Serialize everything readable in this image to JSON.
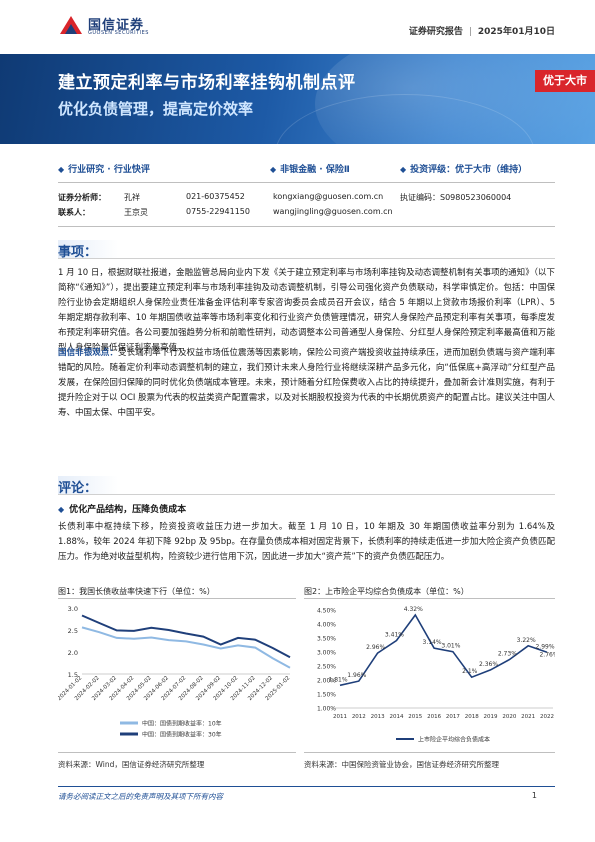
{
  "header": {
    "logo_cn": "国信证券",
    "logo_en": "GUOSEN SECURITIES",
    "report_type": "证券研究报告",
    "date": "2025年01月10日"
  },
  "banner": {
    "title": "建立预定利率与市场利率挂钩机制点评",
    "subtitle": "优化负债管理，提高定价效率",
    "rating_tag": "优于大市"
  },
  "tags": {
    "category": "行业研究 · 行业快评",
    "sector": "非银金融 · 保险Ⅱ",
    "rating": "投资评级：优于大市（维持）"
  },
  "analysts": {
    "row1": {
      "label": "证券分析师：",
      "name": "孔祥",
      "phone": "021-60375452",
      "email": "kongxiang@guosen.com.cn",
      "cert": "执证编码：S0980523060004"
    },
    "row2": {
      "label": "联系人：",
      "name": "王京灵",
      "phone": "0755-22941150",
      "email": "wangjingling@guosen.com.cn"
    }
  },
  "event": {
    "heading": "事项：",
    "para": "1 月 10 日，根据财联社报道，金融监管总局向业内下发《关于建立预定利率与市场利率挂钩及动态调整机制有关事项的通知》（以下简称“《通知》”），提出要建立预定利率与市场利率挂钩及动态调整机制，引导公司强化资产负债联动，科学审慎定价。包括：中国保险行业协会定期组织人身保险业责任准备金评估利率专家咨询委员会成员召开会议，结合 5 年期以上贷款市场报价利率（LPR）、5 年期定期存款利率、10 年期国债收益率等市场利率变化和行业资产负债管理情况，研究人身保险产品预定利率有关事项，每季度发布预定利率研究值。各公司要加强趋势分析和前瞻性研判，动态调整本公司普通型人身保险、分红型人身保险预定利率最高值和万能型人身保险最低保证利率最高值。",
    "view_label": "国信非银观点：",
    "view_text": "受长端利率下行及权益市场低位震荡等因素影响，保险公司资产端投资收益持续承压，进而加剧负债端与资产端利率错配的风险。随着定价利率动态调整机制的建立，我们预计未来人身险行业将继续深耕产品多元化，向“低保底+高浮动”分红型产品发展，在保险回归保障的同时优化负债端成本管理。未来，预计随着分红险保费收入占比的持续提升，叠加新会计准则实施，有利于提升险企对于以 OCI 股票为代表的权益类资产配置需求，以及对长期股权投资为代表的中长期优质资产的配置占比。建议关注中国人寿、中国太保、中国平安。"
  },
  "comment": {
    "heading": "评论：",
    "bullet": "优化产品结构，压降负债成本",
    "para": "长债利率中枢持续下移，险资投资收益压力进一步加大。截至 1 月 10 日，10 年期及 30 年期国债收益率分别为 1.64%及 1.88%，较年 2024 年初下降 92bp 及 95bp。在存量负债成本相对固定背景下，长债利率的持续走低进一步加大险企资产负债匹配压力。作为绝对收益型机构，险资较少进行信用下沉，因此进一步加大“资产荒”下的资产负债匹配压力。"
  },
  "fig1": {
    "title": "图1：我国长债收益率快速下行（单位：%）",
    "source": "资料来源：Wind，国信证券经济研究所整理"
  },
  "fig2": {
    "title": "图2：上市险企平均综合负债成本（单位：%）",
    "source": "资料来源：中国保险资管业协会，国信证券经济研究所整理"
  },
  "chart_data": [
    {
      "type": "line",
      "title": "",
      "x": [
        "2024-01-02",
        "2024-02-02",
        "2024-03-02",
        "2024-04-02",
        "2024-05-02",
        "2024-06-02",
        "2024-07-02",
        "2024-08-02",
        "2024-09-02",
        "2024-10-02",
        "2024-11-02",
        "2024-12-02",
        "2025-01-02"
      ],
      "series": [
        {
          "name": "中国：国债到期收益率：10年",
          "color": "#8fb9e3",
          "values": [
            2.56,
            2.45,
            2.32,
            2.3,
            2.33,
            2.27,
            2.24,
            2.17,
            2.08,
            2.15,
            2.1,
            1.86,
            1.64
          ]
        },
        {
          "name": "中国：国债到期收益率：30年",
          "color": "#1f3f7a",
          "values": [
            2.83,
            2.66,
            2.49,
            2.48,
            2.55,
            2.5,
            2.42,
            2.35,
            2.17,
            2.32,
            2.28,
            2.09,
            1.88
          ]
        }
      ],
      "ylim": [
        1.5,
        3.0
      ],
      "yticks": [
        "3.0",
        "2.5",
        "2.0",
        "1.5"
      ],
      "xticks": [
        "2024-01-02",
        "2024-02-02",
        "2024-03-02",
        "2024-04-02",
        "2024-05-02",
        "2024-06-02",
        "2024-07-02",
        "2024-08-02",
        "2024-09-02",
        "2024-10-02",
        "2024-11-02",
        "2024-12-02",
        "2025-01-02"
      ],
      "legend": "bottom"
    },
    {
      "type": "line",
      "title": "",
      "x": [
        "2011",
        "2012",
        "2013",
        "2014",
        "2015",
        "2016",
        "2017",
        "2018",
        "2019",
        "2020",
        "2021",
        "2022"
      ],
      "series": [
        {
          "name": "上市险企平均综合负债成本",
          "color": "#1f3f7a",
          "values": [
            1.81,
            1.96,
            2.96,
            3.41,
            4.32,
            3.14,
            3.01,
            2.1,
            2.36,
            2.73,
            3.22,
            2.99
          ]
        }
      ],
      "data_labels": [
        "1.81%",
        "1.96%",
        "2.96%",
        "3.41%",
        "4.32%",
        "3.14%",
        "3.01%",
        "2.1%",
        "2.36%",
        "2.73%",
        "3.22%",
        "2.99%"
      ],
      "extra_label": "2.76%",
      "ylim": [
        1.0,
        4.5
      ],
      "yticks": [
        "4.50%",
        "4.00%",
        "3.50%",
        "3.00%",
        "2.50%",
        "2.00%",
        "1.50%",
        "1.00%"
      ],
      "legend": "bottom"
    }
  ],
  "footer": {
    "disclaimer": "请务必阅读正文之后的免责声明及其项下所有内容",
    "page": "1"
  }
}
